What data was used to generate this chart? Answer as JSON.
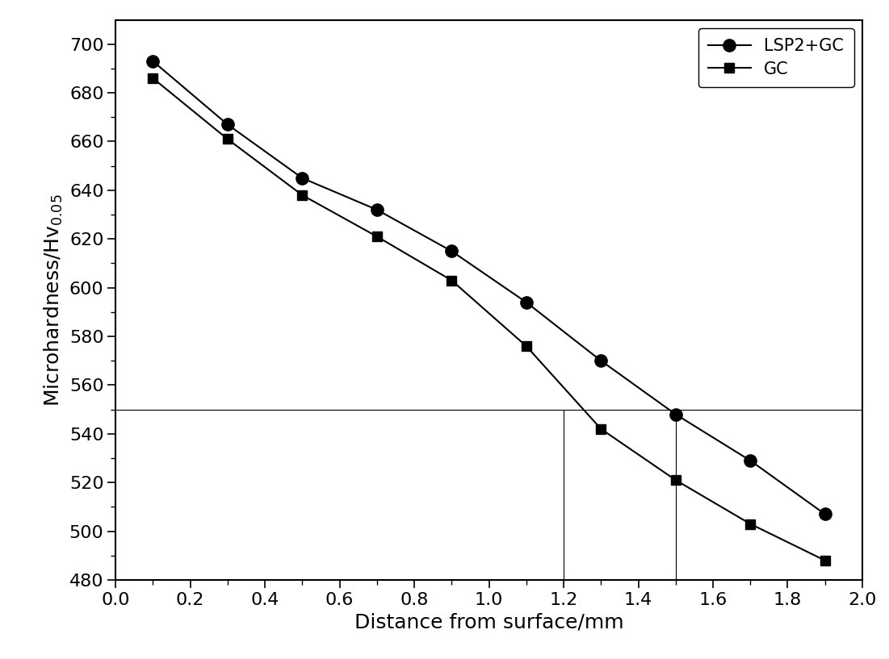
{
  "lsp2gc_x": [
    0.1,
    0.3,
    0.5,
    0.7,
    0.9,
    1.1,
    1.3,
    1.5,
    1.7,
    1.9
  ],
  "lsp2gc_y": [
    693,
    667,
    645,
    632,
    615,
    594,
    570,
    548,
    529,
    507
  ],
  "gc_x": [
    0.1,
    0.3,
    0.5,
    0.7,
    0.9,
    1.1,
    1.3,
    1.5,
    1.7,
    1.9
  ],
  "gc_y": [
    686,
    661,
    638,
    621,
    603,
    576,
    542,
    521,
    503,
    488
  ],
  "hline_y": 550,
  "vline_gc_x": 1.2,
  "vline_lsp2gc_x": 1.5,
  "xlim": [
    0.0,
    2.0
  ],
  "ylim": [
    480,
    710
  ],
  "xticks": [
    0.0,
    0.2,
    0.4,
    0.6,
    0.8,
    1.0,
    1.2,
    1.4,
    1.6,
    1.8,
    2.0
  ],
  "yticks": [
    480,
    500,
    520,
    540,
    560,
    580,
    600,
    620,
    640,
    660,
    680,
    700
  ],
  "xlabel": "Distance from surface/mm",
  "ylabel": "Microhardness/Hv$_{0.05}$",
  "line_color": "#000000",
  "marker_circle": "o",
  "marker_square": "s",
  "label_lsp2gc": "LSP2+GC",
  "label_gc": "GC",
  "legend_loc": "upper right",
  "figsize": [
    11.01,
    8.17
  ],
  "dpi": 100,
  "minor_xticks": [
    0.1,
    0.3,
    0.5,
    0.7,
    0.9,
    1.1,
    1.3,
    1.5,
    1.7,
    1.9
  ],
  "minor_yticks": [
    490,
    510,
    530,
    550,
    570,
    590,
    610,
    630,
    650,
    670,
    690
  ]
}
